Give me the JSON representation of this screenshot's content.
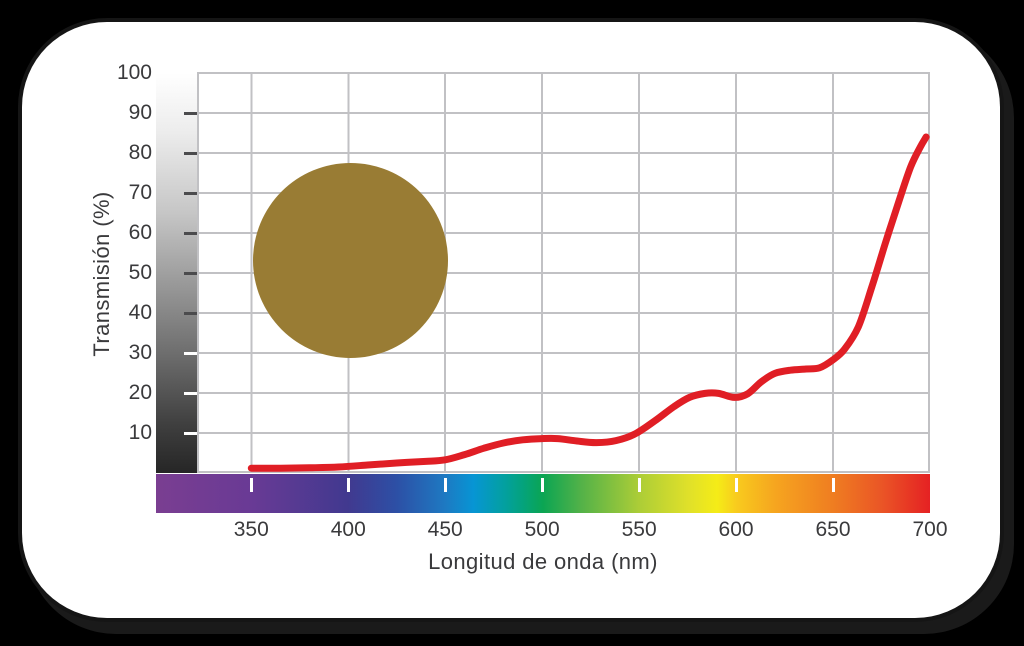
{
  "page": {
    "background": "#000000",
    "card_background": "#ffffff",
    "text_color": "#3a3a3c",
    "grid_color": "#c1c1c4"
  },
  "chart_data": {
    "type": "line",
    "title": "",
    "xlabel": "Longitud de onda (nm)",
    "ylabel": "Transmisión (%)",
    "xlim": [
      322,
      700
    ],
    "ylim": [
      0,
      100
    ],
    "grid": true,
    "x_tick_labels": [
      "350",
      "400",
      "450",
      "500",
      "550",
      "600",
      "650",
      "700"
    ],
    "x_ticks": [
      350,
      400,
      450,
      500,
      550,
      600,
      650,
      700
    ],
    "y_tick_labels": [
      "100",
      "90",
      "80",
      "70",
      "60",
      "50",
      "40",
      "30",
      "20",
      "10"
    ],
    "y_ticks": [
      100,
      90,
      80,
      70,
      60,
      50,
      40,
      30,
      20,
      10
    ],
    "series": [
      {
        "name": "transmission-curve",
        "color": "#e01e25",
        "stroke_width": 7,
        "points": [
          [
            350,
            1.2
          ],
          [
            365,
            1.2
          ],
          [
            380,
            1.3
          ],
          [
            395,
            1.5
          ],
          [
            410,
            2.0
          ],
          [
            425,
            2.5
          ],
          [
            440,
            2.9
          ],
          [
            450,
            3.3
          ],
          [
            460,
            4.6
          ],
          [
            470,
            6.2
          ],
          [
            480,
            7.5
          ],
          [
            490,
            8.3
          ],
          [
            500,
            8.6
          ],
          [
            508,
            8.6
          ],
          [
            518,
            8.0
          ],
          [
            528,
            7.6
          ],
          [
            538,
            8.1
          ],
          [
            548,
            9.8
          ],
          [
            558,
            13.0
          ],
          [
            568,
            16.6
          ],
          [
            576,
            18.9
          ],
          [
            584,
            19.9
          ],
          [
            591,
            19.9
          ],
          [
            599,
            18.9
          ],
          [
            606,
            19.8
          ],
          [
            613,
            22.8
          ],
          [
            620,
            24.9
          ],
          [
            628,
            25.7
          ],
          [
            636,
            26.0
          ],
          [
            643,
            26.3
          ],
          [
            650,
            28.3
          ],
          [
            656,
            31.0
          ],
          [
            663,
            36.5
          ],
          [
            670,
            46.5
          ],
          [
            677,
            57.5
          ],
          [
            684,
            68.0
          ],
          [
            690,
            76.5
          ],
          [
            695,
            81.5
          ],
          [
            698,
            84.0
          ]
        ]
      }
    ],
    "lens_tint": {
      "color": "#997c34"
    },
    "grayscale_bar": {
      "top_color": "#ffffff",
      "bottom_color": "#262626",
      "tick_values": [
        90,
        80,
        70,
        60,
        50,
        40,
        30,
        20,
        10
      ],
      "tick_dark_color": "#4b4b4d",
      "tick_light_color": "#ffffff",
      "light_tick_below": 35
    },
    "spectrum_bar": {
      "tick_wavelengths": [
        350,
        400,
        450,
        500,
        550,
        600,
        650
      ],
      "gradient_stops": [
        {
          "pos": 0,
          "color": "#7a3e91"
        },
        {
          "pos": 12.3,
          "color": "#693a95"
        },
        {
          "pos": 24.8,
          "color": "#41398f"
        },
        {
          "pos": 31.0,
          "color": "#2d4fa5"
        },
        {
          "pos": 37.3,
          "color": "#1e79c2"
        },
        {
          "pos": 41.0,
          "color": "#0795d4"
        },
        {
          "pos": 45.0,
          "color": "#03a0a0"
        },
        {
          "pos": 47.4,
          "color": "#04a37c"
        },
        {
          "pos": 50.0,
          "color": "#0ba553"
        },
        {
          "pos": 55.0,
          "color": "#54b248"
        },
        {
          "pos": 62.4,
          "color": "#accd37"
        },
        {
          "pos": 68.7,
          "color": "#dfe02a"
        },
        {
          "pos": 72.5,
          "color": "#f5ec17"
        },
        {
          "pos": 75.0,
          "color": "#f8cb1e"
        },
        {
          "pos": 80.0,
          "color": "#f6a51f"
        },
        {
          "pos": 87.5,
          "color": "#ef7d21"
        },
        {
          "pos": 93.8,
          "color": "#ea5526"
        },
        {
          "pos": 100,
          "color": "#e52123"
        }
      ]
    }
  }
}
